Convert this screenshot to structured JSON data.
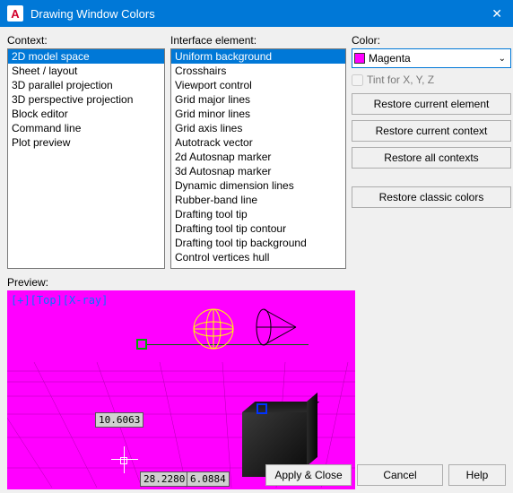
{
  "window": {
    "title": "Drawing Window Colors",
    "icon_letter": "A"
  },
  "labels": {
    "context": "Context:",
    "interface": "Interface element:",
    "color": "Color:",
    "preview": "Preview:",
    "tint": "Tint for X, Y, Z"
  },
  "context_items": [
    "2D model space",
    "Sheet / layout",
    "3D parallel projection",
    "3D perspective projection",
    "Block editor",
    "Command line",
    "Plot preview"
  ],
  "context_selected": 0,
  "interface_items": [
    "Uniform background",
    "Crosshairs",
    "Viewport control",
    "Grid major lines",
    "Grid minor lines",
    "Grid axis lines",
    "Autotrack vector",
    "2d Autosnap marker",
    "3d Autosnap marker",
    "Dynamic dimension lines",
    "Rubber-band line",
    "Drafting tool tip",
    "Drafting tool tip contour",
    "Drafting tool tip background",
    "Control vertices hull"
  ],
  "interface_selected": 0,
  "color": {
    "swatch": "#ff00ff",
    "name": "Magenta"
  },
  "tint_enabled": false,
  "buttons": {
    "restore_element": "Restore current element",
    "restore_context": "Restore current context",
    "restore_all": "Restore all contexts",
    "restore_classic": "Restore classic colors",
    "apply": "Apply & Close",
    "cancel": "Cancel",
    "help": "Help"
  },
  "preview": {
    "overlay": "[+][Top][X-ray]",
    "coord1": "10.6063",
    "coord2": "28.2280",
    "coord3": "6.0884",
    "background": "#ff00ff"
  }
}
